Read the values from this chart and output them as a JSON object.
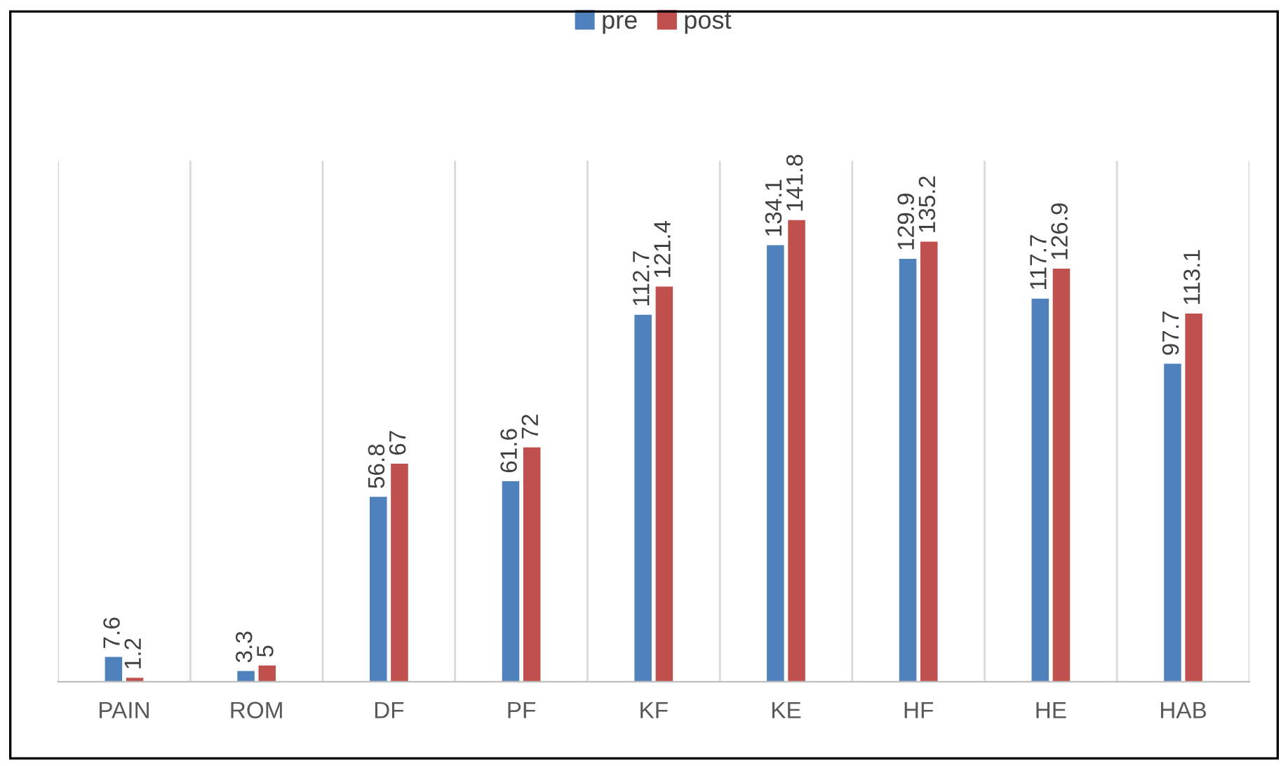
{
  "chart_data": {
    "type": "bar",
    "categories": [
      "PAIN",
      "ROM",
      "DF",
      "PF",
      "KF",
      "KE",
      "HF",
      "HE",
      "HAB"
    ],
    "series": [
      {
        "name": "pre",
        "color": "#4f81bd",
        "values": [
          7.6,
          3.3,
          56.8,
          61.6,
          112.7,
          134.1,
          129.9,
          117.7,
          97.7
        ]
      },
      {
        "name": "post",
        "color": "#c0504d",
        "values": [
          1.2,
          5,
          67,
          72,
          121.4,
          141.8,
          135.2,
          126.9,
          113.1
        ]
      }
    ],
    "ylim": [
      0,
      160
    ],
    "data_labels": true,
    "grid": "x",
    "legend": "top",
    "tick_labels": "x"
  }
}
